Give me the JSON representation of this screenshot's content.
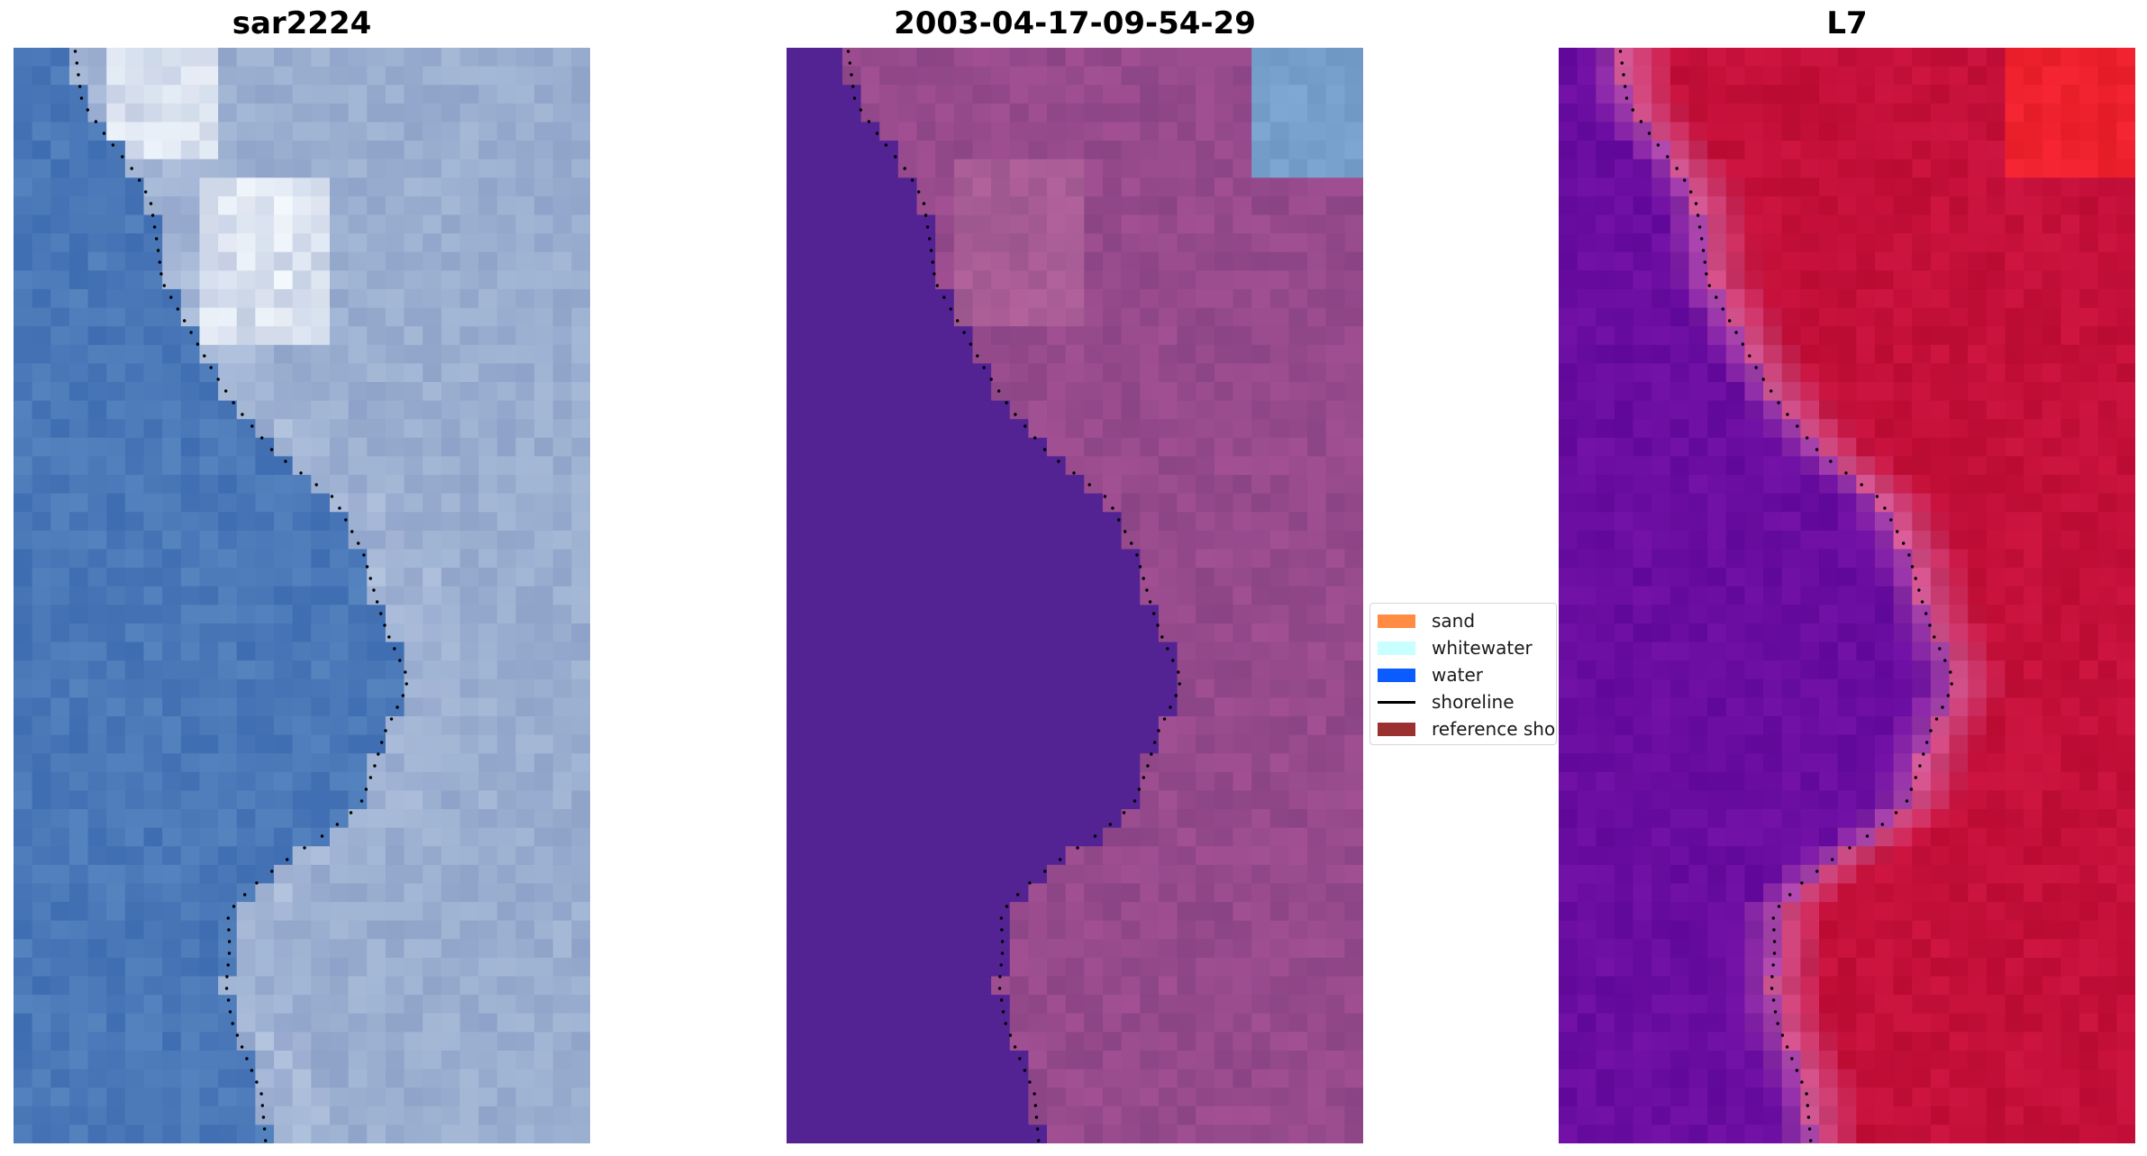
{
  "panels": [
    {
      "title": "sar2224",
      "scene": "rgb"
    },
    {
      "title": "2003-04-17-09-54-29",
      "scene": "classified"
    },
    {
      "title": "L7",
      "scene": "index"
    }
  ],
  "legend": {
    "items": [
      {
        "label": "sand",
        "kind": "patch",
        "color": "#ff8c42"
      },
      {
        "label": "whitewater",
        "kind": "patch",
        "color": "#c8ffff"
      },
      {
        "label": "water",
        "kind": "patch",
        "color": "#0a5cff"
      },
      {
        "label": "shoreline",
        "kind": "line",
        "color": "#000000"
      },
      {
        "label": "reference shoreline",
        "kind": "patch",
        "color": "#9b3031"
      }
    ]
  },
  "colors": {
    "classified_water": "#532394",
    "index_water": "#6a0da0",
    "index_land": "#c4103a",
    "rgb_water": "#4a78b8",
    "rgb_land": "#9aaed0"
  }
}
